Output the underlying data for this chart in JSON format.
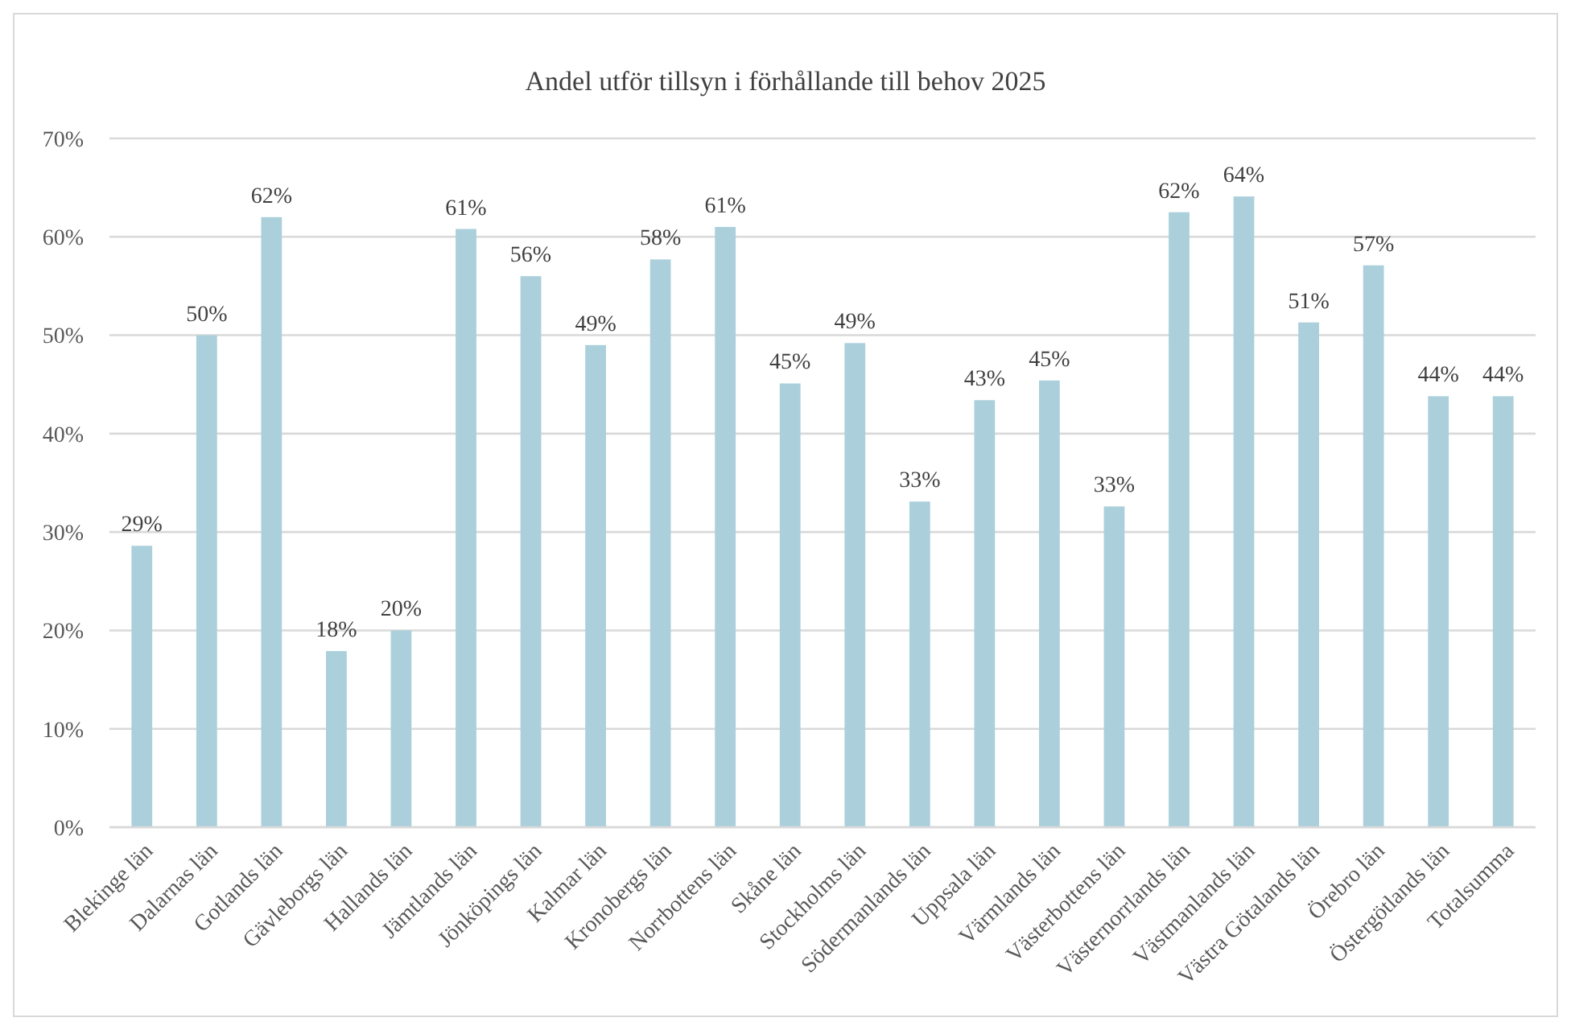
{
  "chart_data": {
    "type": "bar",
    "title": "Andel utför tillsyn i förhållande till behov 2025",
    "categories": [
      "Blekinge län",
      "Dalarnas län",
      "Gotlands län",
      "Gävleborgs län",
      "Hallands län",
      "Jämtlands län",
      "Jönköpings län",
      "Kalmar län",
      "Kronobergs län",
      "Norrbottens län",
      "Skåne län",
      "Stockholms län",
      "Södermanlands län",
      "Uppsala län",
      "Värmlands län",
      "Västerbottens län",
      "Västernorrlands län",
      "Västmanlands län",
      "Västra Götalands län",
      "Örebro län",
      "Östergötlands län",
      "Totalsumma"
    ],
    "values": [
      28.6,
      50,
      62,
      17.9,
      20,
      60.8,
      56,
      49,
      57.7,
      61,
      45.1,
      49.2,
      33.1,
      43.4,
      45.4,
      32.6,
      62.5,
      64.1,
      51.3,
      57.1,
      43.8,
      43.8
    ],
    "value_labels": [
      "29%",
      "50%",
      "62%",
      "18%",
      "20%",
      "61%",
      "56%",
      "49%",
      "58%",
      "61%",
      "45%",
      "49%",
      "33%",
      "43%",
      "45%",
      "33%",
      "62%",
      "64%",
      "51%",
      "57%",
      "44%",
      "44%"
    ],
    "color": "#abd0db",
    "ylim": [
      0,
      70
    ],
    "yticks": [
      {
        "value": 0,
        "label": "0%"
      },
      {
        "value": 10,
        "label": "10%"
      },
      {
        "value": 20,
        "label": "20%"
      },
      {
        "value": 30,
        "label": "30%"
      },
      {
        "value": 40,
        "label": "40%"
      },
      {
        "value": 50,
        "label": "50%"
      },
      {
        "value": 60,
        "label": "60%"
      },
      {
        "value": 70,
        "label": "70%"
      }
    ],
    "grid": "y"
  }
}
